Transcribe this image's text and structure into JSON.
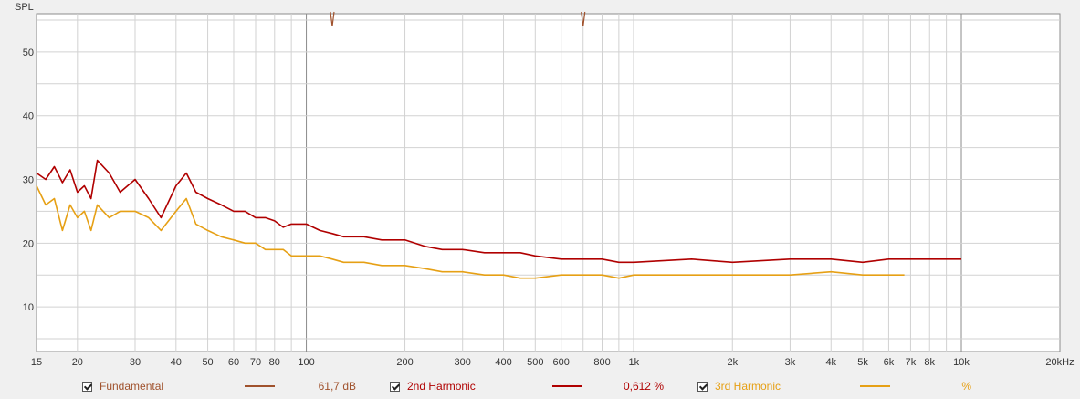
{
  "chart_data": {
    "type": "line",
    "title": "",
    "ylabel": "SPL",
    "xlabel": "",
    "x_scale": "log",
    "xlim": [
      15,
      20000
    ],
    "ylim": [
      3,
      56
    ],
    "grid": true,
    "y_ticks": [
      10,
      20,
      30,
      40,
      50
    ],
    "y_tick_labels": [
      "10",
      "20",
      "30",
      "40",
      "50"
    ],
    "x_ticks": [
      15,
      20,
      30,
      40,
      50,
      60,
      70,
      80,
      100,
      200,
      300,
      400,
      500,
      600,
      800,
      1000,
      2000,
      3000,
      4000,
      5000,
      6000,
      7000,
      8000,
      10000,
      20000
    ],
    "x_tick_labels": [
      "15",
      "20",
      "30",
      "40",
      "50",
      "60",
      "70",
      "80",
      "100",
      "200",
      "300",
      "400",
      "500",
      "600",
      "800",
      "1k",
      "2k",
      "3k",
      "4k",
      "5k",
      "6k",
      "7k",
      "8k",
      "10k",
      "20kHz"
    ],
    "series": [
      {
        "name": "2nd Harmonic",
        "color": "#b00000",
        "x": [
          15,
          16,
          17,
          18,
          19,
          20,
          21,
          22,
          23,
          25,
          27,
          30,
          33,
          36,
          40,
          43,
          46,
          50,
          55,
          60,
          65,
          70,
          75,
          80,
          85,
          90,
          100,
          110,
          120,
          130,
          150,
          170,
          200,
          230,
          260,
          300,
          350,
          400,
          450,
          500,
          600,
          700,
          800,
          900,
          1000,
          1500,
          2000,
          3000,
          4000,
          5000,
          6000,
          7000,
          8000,
          10000
        ],
        "y": [
          31,
          30,
          32,
          29.5,
          31.5,
          28,
          29,
          27,
          33,
          31,
          28,
          30,
          27,
          24,
          29,
          31,
          28,
          27,
          26,
          25,
          25,
          24,
          24,
          23.5,
          22.5,
          23,
          23,
          22,
          21.5,
          21,
          21,
          20.5,
          20.5,
          19.5,
          19,
          19,
          18.5,
          18.5,
          18.5,
          18,
          17.5,
          17.5,
          17.5,
          17,
          17,
          17.5,
          17,
          17.5,
          17.5,
          17,
          17.5,
          17.5,
          17.5,
          17.5
        ]
      },
      {
        "name": "3rd Harmonic",
        "color": "#e6a015",
        "x": [
          15,
          16,
          17,
          18,
          19,
          20,
          21,
          22,
          23,
          25,
          27,
          30,
          33,
          36,
          40,
          43,
          46,
          50,
          55,
          60,
          65,
          70,
          75,
          80,
          85,
          90,
          100,
          110,
          120,
          130,
          150,
          170,
          200,
          230,
          260,
          300,
          350,
          400,
          450,
          500,
          600,
          700,
          800,
          900,
          1000,
          1500,
          2000,
          3000,
          4000,
          5000,
          6000,
          6700
        ],
        "y": [
          29,
          26,
          27,
          22,
          26,
          24,
          25,
          22,
          26,
          24,
          25,
          25,
          24,
          22,
          25,
          27,
          23,
          22,
          21,
          20.5,
          20,
          20,
          19,
          19,
          19,
          18,
          18,
          18,
          17.5,
          17,
          17,
          16.5,
          16.5,
          16,
          15.5,
          15.5,
          15,
          15,
          14.5,
          14.5,
          15,
          15,
          15,
          14.5,
          15,
          15,
          15,
          15,
          15.5,
          15,
          15,
          15
        ]
      }
    ],
    "stray_marks": [
      {
        "series": "Fundamental",
        "x": 120,
        "y": 54
      },
      {
        "series": "Fundamental",
        "x": 700,
        "y": 54
      }
    ]
  },
  "legend": [
    {
      "label": "Fundamental",
      "checked": true,
      "color": "#a0522d",
      "line_color": "#a0522d",
      "value": "61,7 dB"
    },
    {
      "label": "2nd Harmonic",
      "checked": true,
      "color": "#b00000",
      "line_color": "#b00000",
      "value": "0,612 %"
    },
    {
      "label": "3rd Harmonic",
      "checked": true,
      "color": "#e6a015",
      "line_color": "#e6a015",
      "value": "%"
    }
  ]
}
